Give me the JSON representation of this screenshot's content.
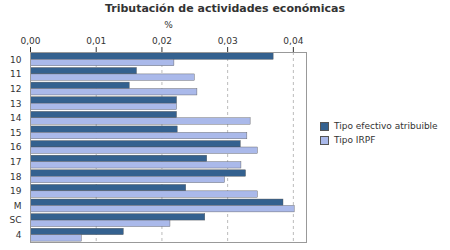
{
  "chart_data": {
    "type": "bar",
    "title": "Tributación de actividades económicas",
    "orientation": "horizontal",
    "x_label": "%",
    "categories": [
      "10",
      "11",
      "12",
      "13",
      "14",
      "15",
      "16",
      "17",
      "18",
      "19",
      "M",
      "SC",
      "4"
    ],
    "series": [
      {
        "name": "Tipo efectivo atribuible",
        "color": "#34618f",
        "values": [
          0.037,
          0.0162,
          0.0151,
          0.0223,
          0.0223,
          0.0224,
          0.032,
          0.0269,
          0.0328,
          0.0237,
          0.0385,
          0.0266,
          0.0142
        ]
      },
      {
        "name": "Tipo IRPF",
        "color": "#aab9ea",
        "values": [
          0.0219,
          0.025,
          0.0254,
          0.0223,
          0.0335,
          0.033,
          0.0346,
          0.0321,
          0.0296,
          0.0346,
          0.0402,
          0.0213,
          0.0078
        ]
      }
    ],
    "xlim": [
      0,
      0.042
    ],
    "xticks": [
      {
        "value": 0,
        "label": "0,00"
      },
      {
        "value": 0.01,
        "label": "0,01"
      },
      {
        "value": 0.02,
        "label": "0,02"
      },
      {
        "value": 0.03,
        "label": "0,03"
      },
      {
        "value": 0.04,
        "label": "0,04"
      }
    ],
    "grid": true,
    "legend": "right"
  }
}
